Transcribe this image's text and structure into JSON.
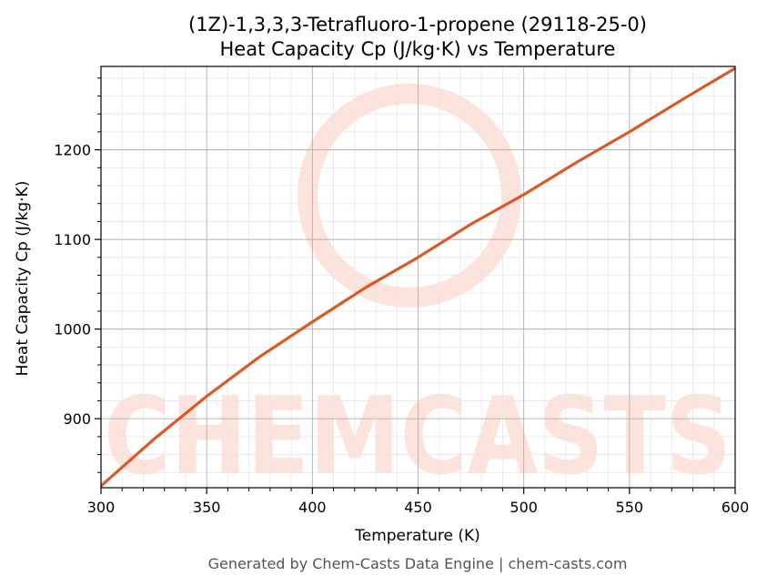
{
  "chart_data": {
    "type": "line",
    "title": "(1Z)-1,3,3,3-Tetrafluoro-1-propene (29118-25-0)",
    "subtitle": "Heat Capacity Cp (J/kg·K) vs Temperature",
    "xlabel": "Temperature (K)",
    "ylabel": "Heat Capacity Cp (J/kg·K)",
    "xlim": [
      300,
      600
    ],
    "ylim": [
      823,
      1293
    ],
    "xticks": [
      300,
      350,
      400,
      450,
      500,
      550,
      600
    ],
    "yticks": [
      900,
      1000,
      1100,
      1200
    ],
    "grid": true,
    "series": [
      {
        "color": "#d95a27",
        "x": [
          300,
          325,
          350,
          375,
          400,
          425,
          450,
          475,
          500,
          525,
          550,
          575,
          600
        ],
        "y": [
          825,
          877,
          925,
          969,
          1008,
          1046,
          1080,
          1117,
          1150,
          1186,
          1220,
          1256,
          1291
        ]
      }
    ]
  },
  "footer": "Generated by Chem-Casts Data Engine | chem-casts.com",
  "watermark": "CHEMCASTS",
  "colors": {
    "line": "#d95a27",
    "watermark": "#fde3dc",
    "grid_major": "#b0b0b0",
    "grid_minor": "#e6e6e6"
  }
}
